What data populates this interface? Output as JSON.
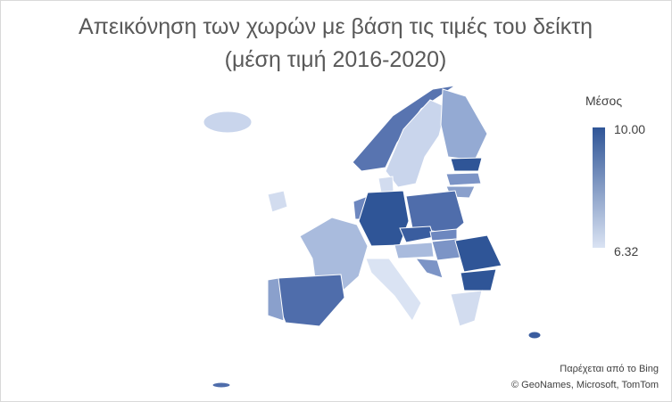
{
  "title": {
    "line1": "Απεικόνηση των χωρών με βάση τις τιμές του δείκτη",
    "line2": "(μέση τιμή 2016-2020)"
  },
  "legend": {
    "title": "Μέσος",
    "max": "10.00",
    "min": "6.32"
  },
  "attribution": {
    "line1": "Παρέχεται από το Bing",
    "line2": "© GeoNames, Microsoft, TomTom"
  }
}
